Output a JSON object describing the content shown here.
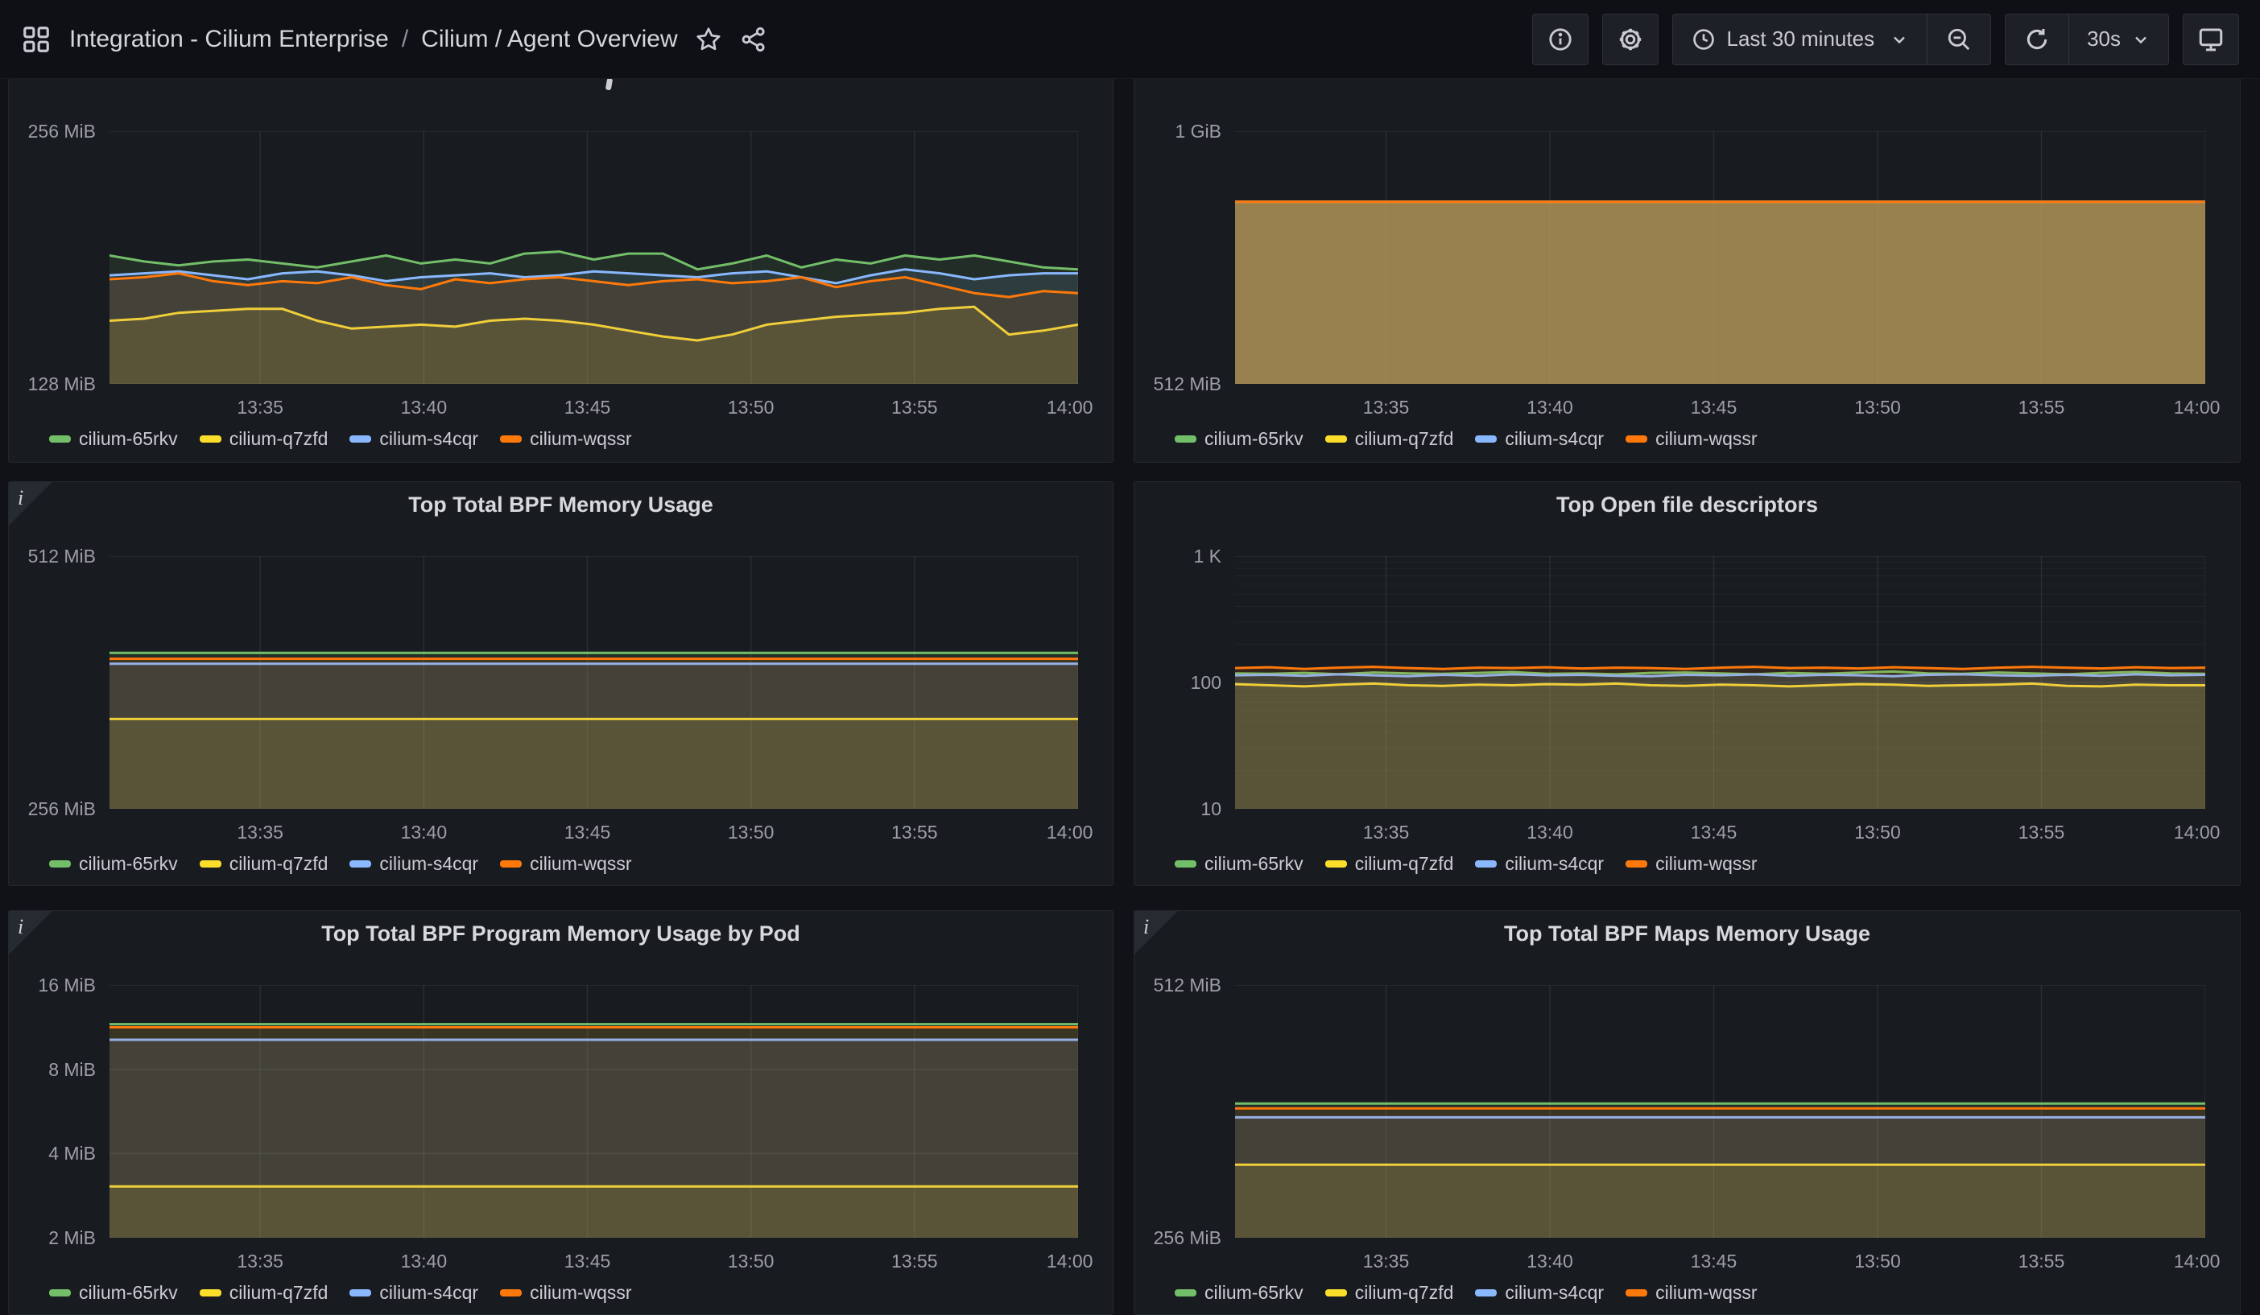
{
  "header": {
    "breadcrumb": {
      "root": "Integration - Cilium Enterprise",
      "separator": "/",
      "page": "Cilium / Agent Overview"
    },
    "time_range_label": "Last 30 minutes",
    "refresh_interval_label": "30s"
  },
  "colors": {
    "page_bg": "#111217",
    "panel_bg": "#181b1f",
    "green": "#73bf69",
    "yellow": "#fade2a",
    "blue": "#8ab8ff",
    "orange": "#ff780a",
    "grid": "rgba(204,204,220,0.10)",
    "grid_minor": "rgba(204,204,220,0.055)"
  },
  "legend": [
    {
      "name": "cilium-65rkv",
      "color_key": "green"
    },
    {
      "name": "cilium-q7zfd",
      "color_key": "yellow"
    },
    {
      "name": "cilium-s4cqr",
      "color_key": "blue"
    },
    {
      "name": "cilium-wqssr",
      "color_key": "orange"
    }
  ],
  "x_ticks": [
    "13:35",
    "13:40",
    "13:45",
    "13:50",
    "13:55",
    "14:00"
  ],
  "chart_data": [
    {
      "key": "top-left",
      "type": "area",
      "title": "",
      "title_hidden_above_scroll": true,
      "info_corner": false,
      "unit": "MiB",
      "scale": "linear",
      "ylim": [
        128,
        256
      ],
      "yticks": [
        {
          "label": "256 MiB",
          "v": 256
        },
        {
          "label": "128 MiB",
          "v": 128
        }
      ],
      "minor_yticks": [],
      "series": [
        {
          "name": "cilium-65rkv",
          "color_key": "green",
          "values": [
            193,
            190,
            188,
            190,
            191,
            189,
            187,
            190,
            193,
            189,
            191,
            189,
            194,
            195,
            191,
            194,
            194,
            186,
            189,
            193,
            187,
            191,
            189,
            193,
            191,
            193,
            190,
            187,
            186
          ]
        },
        {
          "name": "cilium-q7zfd",
          "color_key": "yellow",
          "values": [
            160,
            161,
            164,
            165,
            166,
            166,
            160,
            156,
            157,
            158,
            157,
            160,
            161,
            160,
            158,
            155,
            152,
            150,
            153,
            158,
            160,
            162,
            163,
            164,
            166,
            167,
            153,
            155,
            158
          ]
        },
        {
          "name": "cilium-s4cqr",
          "color_key": "blue",
          "values": [
            183,
            184,
            185,
            183,
            181,
            184,
            185,
            183,
            180,
            182,
            183,
            184,
            182,
            183,
            185,
            184,
            183,
            182,
            184,
            185,
            182,
            179,
            183,
            186,
            184,
            181,
            183,
            184,
            184
          ]
        },
        {
          "name": "cilium-wqssr",
          "color_key": "orange",
          "values": [
            181,
            182,
            184,
            180,
            178,
            180,
            179,
            182,
            178,
            176,
            181,
            179,
            181,
            182,
            180,
            178,
            180,
            181,
            179,
            180,
            182,
            177,
            180,
            182,
            178,
            174,
            172,
            175,
            174
          ]
        }
      ]
    },
    {
      "key": "top-right",
      "type": "area",
      "title": "",
      "title_hidden_above_scroll": true,
      "info_corner": false,
      "unit": "MiB",
      "scale": "linear",
      "ylim": [
        512,
        1024
      ],
      "yticks": [
        {
          "label": "1 GiB",
          "v": 1024
        },
        {
          "label": "512 MiB",
          "v": 512
        }
      ],
      "minor_yticks": [],
      "strong_fill": true,
      "series": [
        {
          "name": "cilium-65rkv",
          "color_key": "green",
          "values": [
            881
          ]
        },
        {
          "name": "cilium-q7zfd",
          "color_key": "yellow",
          "values": [
            881
          ]
        },
        {
          "name": "cilium-s4cqr",
          "color_key": "blue",
          "values": [
            881
          ]
        },
        {
          "name": "cilium-wqssr",
          "color_key": "orange",
          "values": [
            881
          ]
        }
      ]
    },
    {
      "key": "middle-left",
      "type": "area",
      "title": "Top Total BPF Memory Usage",
      "info_corner": true,
      "unit": "MiB",
      "scale": "linear",
      "ylim": [
        256,
        512
      ],
      "yticks": [
        {
          "label": "512 MiB",
          "v": 512
        },
        {
          "label": "256 MiB",
          "v": 256
        }
      ],
      "minor_yticks": [],
      "series": [
        {
          "name": "cilium-65rkv",
          "color_key": "green",
          "values": [
            414
          ]
        },
        {
          "name": "cilium-q7zfd",
          "color_key": "yellow",
          "values": [
            347
          ]
        },
        {
          "name": "cilium-s4cqr",
          "color_key": "blue",
          "values": [
            403
          ]
        },
        {
          "name": "cilium-wqssr",
          "color_key": "orange",
          "values": [
            408
          ]
        }
      ]
    },
    {
      "key": "middle-right",
      "type": "area",
      "title": "Top Open file descriptors",
      "info_corner": false,
      "unit": "count",
      "scale": "log",
      "ylim": [
        10,
        1000
      ],
      "yticks": [
        {
          "label": "1 K",
          "v": 1000
        },
        {
          "label": "100",
          "v": 100
        },
        {
          "label": "10",
          "v": 10
        }
      ],
      "minor_yticks": [
        20,
        30,
        40,
        50,
        60,
        70,
        80,
        90,
        200,
        300,
        400,
        500,
        600,
        700,
        800,
        900
      ],
      "series": [
        {
          "name": "cilium-65rkv",
          "color_key": "green",
          "values": [
            118,
            117,
            119,
            116,
            120,
            118,
            117,
            119,
            121,
            117,
            118,
            116,
            119,
            120,
            118,
            116,
            119,
            117,
            120,
            122,
            118,
            117,
            120,
            118,
            116,
            119,
            121,
            118,
            117
          ]
        },
        {
          "name": "cilium-q7zfd",
          "color_key": "yellow",
          "values": [
            97,
            95,
            93,
            96,
            98,
            95,
            94,
            96,
            95,
            97,
            96,
            98,
            95,
            94,
            96,
            95,
            93,
            95,
            97,
            96,
            94,
            95,
            96,
            98,
            94,
            93,
            96,
            95,
            95
          ]
        },
        {
          "name": "cilium-s4cqr",
          "color_key": "blue",
          "values": [
            114,
            115,
            113,
            116,
            114,
            112,
            115,
            113,
            116,
            114,
            115,
            113,
            112,
            115,
            114,
            116,
            113,
            115,
            114,
            112,
            115,
            116,
            114,
            113,
            115,
            113,
            116,
            114,
            115
          ]
        },
        {
          "name": "cilium-wqssr",
          "color_key": "orange",
          "values": [
            130,
            132,
            128,
            131,
            133,
            130,
            128,
            131,
            130,
            132,
            129,
            131,
            130,
            128,
            131,
            133,
            130,
            131,
            129,
            132,
            130,
            128,
            131,
            133,
            131,
            129,
            132,
            130,
            131
          ]
        }
      ]
    },
    {
      "key": "bottom-left",
      "type": "area",
      "title": "Top Total BPF Program Memory Usage by Pod",
      "info_corner": true,
      "unit": "MiB",
      "scale": "log",
      "ylim": [
        2,
        16
      ],
      "yticks": [
        {
          "label": "16 MiB",
          "v": 16
        },
        {
          "label": "8 MiB",
          "v": 8
        },
        {
          "label": "4 MiB",
          "v": 4
        },
        {
          "label": "2 MiB",
          "v": 2
        }
      ],
      "minor_yticks": [],
      "legend_clipped": true,
      "series": [
        {
          "name": "cilium-65rkv",
          "color_key": "green",
          "values": [
            11.6
          ]
        },
        {
          "name": "cilium-q7zfd",
          "color_key": "yellow",
          "values": [
            3.05
          ]
        },
        {
          "name": "cilium-s4cqr",
          "color_key": "blue",
          "values": [
            10.2
          ]
        },
        {
          "name": "cilium-wqssr",
          "color_key": "orange",
          "values": [
            11.3
          ]
        }
      ]
    },
    {
      "key": "bottom-right",
      "type": "area",
      "title": "Top Total BPF Maps Memory Usage",
      "info_corner": true,
      "unit": "MiB",
      "scale": "linear",
      "ylim": [
        256,
        512
      ],
      "yticks": [
        {
          "label": "512 MiB",
          "v": 512
        },
        {
          "label": "256 MiB",
          "v": 256
        }
      ],
      "minor_yticks": [],
      "legend_clipped": true,
      "series": [
        {
          "name": "cilium-65rkv",
          "color_key": "green",
          "values": [
            392
          ]
        },
        {
          "name": "cilium-q7zfd",
          "color_key": "yellow",
          "values": [
            330
          ]
        },
        {
          "name": "cilium-s4cqr",
          "color_key": "blue",
          "values": [
            378
          ]
        },
        {
          "name": "cilium-wqssr",
          "color_key": "orange",
          "values": [
            387
          ]
        }
      ]
    }
  ]
}
